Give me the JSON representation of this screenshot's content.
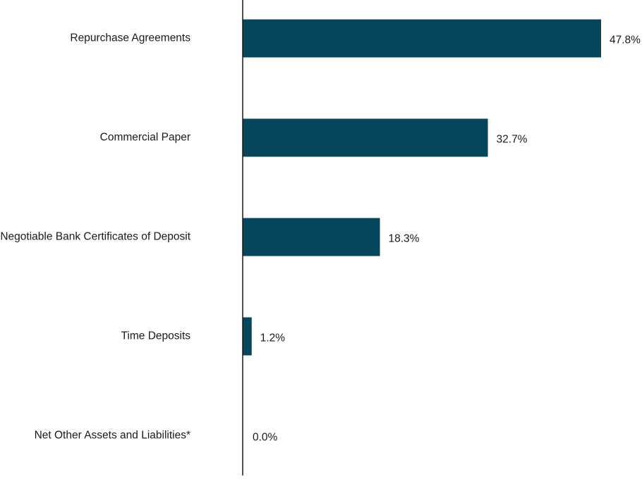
{
  "colors": {
    "bar": "#06465c",
    "axis": "#1a1a1a",
    "text": "#1a1a1a"
  },
  "chart_data": {
    "type": "bar",
    "orientation": "horizontal",
    "categories": [
      "Repurchase Agreements",
      "Commercial Paper",
      "Negotiable Bank Certificates of Deposit",
      "Time Deposits",
      "Net Other Assets and Liabilities*"
    ],
    "values": [
      47.8,
      32.7,
      18.3,
      1.2,
      0.0
    ],
    "data_labels": [
      "47.8%",
      "32.7%",
      "18.3%",
      "1.2%",
      "0.0%"
    ],
    "title": "",
    "xlabel": "",
    "ylabel": "",
    "xlim": [
      0,
      47.8
    ],
    "grid": false,
    "legend": "none"
  }
}
